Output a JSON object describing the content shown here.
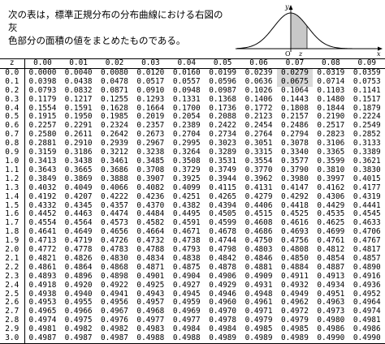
{
  "intro": {
    "line1": "次の表は，標準正規分布の分布曲線における右図の灰",
    "line2": "色部分の面積の値をまとめたものである。"
  },
  "diagram": {
    "axis_y": "y",
    "axis_x": "x",
    "origin": "O",
    "z_mark": "z",
    "shade_color": "#c8c8c8"
  },
  "table": {
    "corner": "z",
    "headers": [
      "0.00",
      "0.01",
      "0.02",
      "0.03",
      "0.04",
      "0.05",
      "0.06",
      "0.07",
      "0.08",
      "0.09"
    ],
    "highlight_col": 7,
    "highlight_rows": [
      0,
      1
    ],
    "rows": [
      {
        "z": "0.0",
        "values": [
          "0.0000",
          "0.0040",
          "0.0080",
          "0.0120",
          "0.0160",
          "0.0199",
          "0.0239",
          "0.0279",
          "0.0319",
          "0.0359"
        ]
      },
      {
        "z": "0.1",
        "values": [
          "0.0398",
          "0.0438",
          "0.0478",
          "0.0517",
          "0.0557",
          "0.0596",
          "0.0636",
          "0.0675",
          "0.0714",
          "0.0753"
        ]
      },
      {
        "z": "0.2",
        "values": [
          "0.0793",
          "0.0832",
          "0.0871",
          "0.0910",
          "0.0948",
          "0.0987",
          "0.1026",
          "0.1064",
          "0.1103",
          "0.1141"
        ]
      },
      {
        "z": "0.3",
        "values": [
          "0.1179",
          "0.1217",
          "0.1255",
          "0.1293",
          "0.1331",
          "0.1368",
          "0.1406",
          "0.1443",
          "0.1480",
          "0.1517"
        ]
      },
      {
        "z": "0.4",
        "values": [
          "0.1554",
          "0.1591",
          "0.1628",
          "0.1664",
          "0.1700",
          "0.1736",
          "0.1772",
          "0.1808",
          "0.1844",
          "0.1879"
        ]
      },
      {
        "z": "0.5",
        "values": [
          "0.1915",
          "0.1950",
          "0.1985",
          "0.2019",
          "0.2054",
          "0.2088",
          "0.2123",
          "0.2157",
          "0.2190",
          "0.2224"
        ]
      },
      {
        "z": "0.6",
        "values": [
          "0.2257",
          "0.2291",
          "0.2324",
          "0.2357",
          "0.2389",
          "0.2422",
          "0.2454",
          "0.2486",
          "0.2517",
          "0.2549"
        ]
      },
      {
        "z": "0.7",
        "values": [
          "0.2580",
          "0.2611",
          "0.2642",
          "0.2673",
          "0.2704",
          "0.2734",
          "0.2764",
          "0.2794",
          "0.2823",
          "0.2852"
        ]
      },
      {
        "z": "0.8",
        "values": [
          "0.2881",
          "0.2910",
          "0.2939",
          "0.2967",
          "0.2995",
          "0.3023",
          "0.3051",
          "0.3078",
          "0.3106",
          "0.3133"
        ]
      },
      {
        "z": "0.9",
        "values": [
          "0.3159",
          "0.3186",
          "0.3212",
          "0.3238",
          "0.3264",
          "0.3289",
          "0.3315",
          "0.3340",
          "0.3365",
          "0.3389"
        ]
      },
      {
        "z": "1.0",
        "values": [
          "0.3413",
          "0.3438",
          "0.3461",
          "0.3485",
          "0.3508",
          "0.3531",
          "0.3554",
          "0.3577",
          "0.3599",
          "0.3621"
        ]
      },
      {
        "z": "1.1",
        "values": [
          "0.3643",
          "0.3665",
          "0.3686",
          "0.3708",
          "0.3729",
          "0.3749",
          "0.3770",
          "0.3790",
          "0.3810",
          "0.3830"
        ]
      },
      {
        "z": "1.2",
        "values": [
          "0.3849",
          "0.3869",
          "0.3888",
          "0.3907",
          "0.3925",
          "0.3944",
          "0.3962",
          "0.3980",
          "0.3997",
          "0.4015"
        ]
      },
      {
        "z": "1.3",
        "values": [
          "0.4032",
          "0.4049",
          "0.4066",
          "0.4082",
          "0.4099",
          "0.4115",
          "0.4131",
          "0.4147",
          "0.4162",
          "0.4177"
        ]
      },
      {
        "z": "1.4",
        "values": [
          "0.4192",
          "0.4207",
          "0.4222",
          "0.4236",
          "0.4251",
          "0.4265",
          "0.4279",
          "0.4292",
          "0.4306",
          "0.4319"
        ]
      },
      {
        "z": "1.5",
        "values": [
          "0.4332",
          "0.4345",
          "0.4357",
          "0.4370",
          "0.4382",
          "0.4394",
          "0.4406",
          "0.4418",
          "0.4429",
          "0.4441"
        ]
      },
      {
        "z": "1.6",
        "values": [
          "0.4452",
          "0.4463",
          "0.4474",
          "0.4484",
          "0.4495",
          "0.4505",
          "0.4515",
          "0.4525",
          "0.4535",
          "0.4545"
        ]
      },
      {
        "z": "1.7",
        "values": [
          "0.4554",
          "0.4564",
          "0.4573",
          "0.4582",
          "0.4591",
          "0.4599",
          "0.4608",
          "0.4616",
          "0.4625",
          "0.4633"
        ]
      },
      {
        "z": "1.8",
        "values": [
          "0.4641",
          "0.4649",
          "0.4656",
          "0.4664",
          "0.4671",
          "0.4678",
          "0.4686",
          "0.4693",
          "0.4699",
          "0.4706"
        ]
      },
      {
        "z": "1.9",
        "values": [
          "0.4713",
          "0.4719",
          "0.4726",
          "0.4732",
          "0.4738",
          "0.4744",
          "0.4750",
          "0.4756",
          "0.4761",
          "0.4767"
        ]
      },
      {
        "z": "2.0",
        "values": [
          "0.4772",
          "0.4778",
          "0.4783",
          "0.4788",
          "0.4793",
          "0.4798",
          "0.4803",
          "0.4808",
          "0.4812",
          "0.4817"
        ]
      },
      {
        "z": "2.1",
        "values": [
          "0.4821",
          "0.4826",
          "0.4830",
          "0.4834",
          "0.4838",
          "0.4842",
          "0.4846",
          "0.4850",
          "0.4854",
          "0.4857"
        ]
      },
      {
        "z": "2.2",
        "values": [
          "0.4861",
          "0.4864",
          "0.4868",
          "0.4871",
          "0.4875",
          "0.4878",
          "0.4881",
          "0.4884",
          "0.4887",
          "0.4890"
        ]
      },
      {
        "z": "2.3",
        "values": [
          "0.4893",
          "0.4896",
          "0.4898",
          "0.4901",
          "0.4904",
          "0.4906",
          "0.4909",
          "0.4911",
          "0.4913",
          "0.4916"
        ]
      },
      {
        "z": "2.4",
        "values": [
          "0.4918",
          "0.4920",
          "0.4922",
          "0.4925",
          "0.4927",
          "0.4929",
          "0.4931",
          "0.4932",
          "0.4934",
          "0.4936"
        ]
      },
      {
        "z": "2.5",
        "values": [
          "0.4938",
          "0.4940",
          "0.4941",
          "0.4943",
          "0.4945",
          "0.4946",
          "0.4948",
          "0.4949",
          "0.4951",
          "0.4952"
        ]
      },
      {
        "z": "2.6",
        "values": [
          "0.4953",
          "0.4955",
          "0.4956",
          "0.4957",
          "0.4959",
          "0.4960",
          "0.4961",
          "0.4962",
          "0.4963",
          "0.4964"
        ]
      },
      {
        "z": "2.7",
        "values": [
          "0.4965",
          "0.4966",
          "0.4967",
          "0.4968",
          "0.4969",
          "0.4970",
          "0.4971",
          "0.4972",
          "0.4973",
          "0.4974"
        ]
      },
      {
        "z": "2.8",
        "values": [
          "0.4974",
          "0.4975",
          "0.4976",
          "0.4977",
          "0.4977",
          "0.4978",
          "0.4979",
          "0.4979",
          "0.4980",
          "0.4981"
        ]
      },
      {
        "z": "2.9",
        "values": [
          "0.4981",
          "0.4982",
          "0.4982",
          "0.4983",
          "0.4984",
          "0.4984",
          "0.4985",
          "0.4985",
          "0.4986",
          "0.4986"
        ]
      },
      {
        "z": "3.0",
        "values": [
          "0.4987",
          "0.4987",
          "0.4987",
          "0.4988",
          "0.4988",
          "0.4989",
          "0.4989",
          "0.4989",
          "0.4990",
          "0.4990"
        ]
      }
    ]
  }
}
